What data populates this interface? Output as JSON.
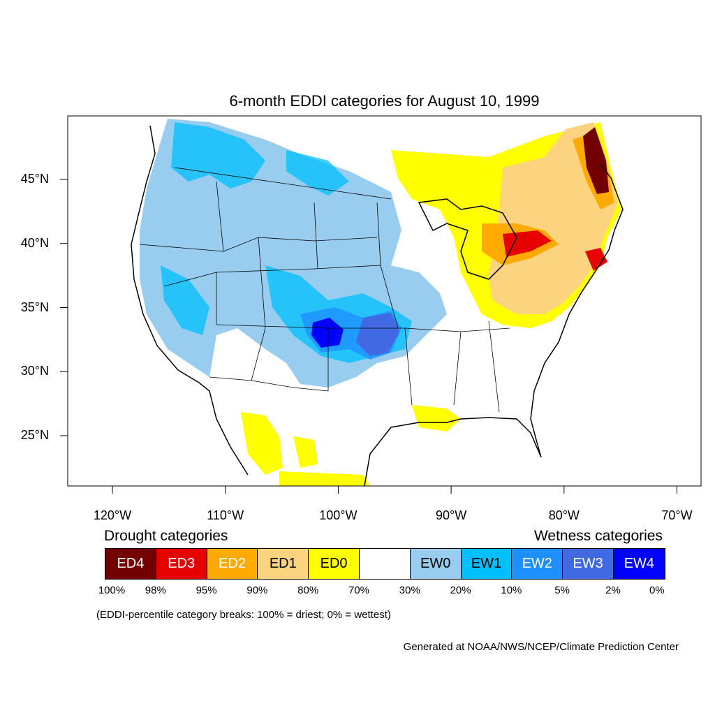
{
  "title": "6-month EDDI categories for August 10, 1999",
  "lat_labels": [
    "45°N",
    "40°N",
    "35°N",
    "30°N",
    "25°N"
  ],
  "lat_values": [
    45,
    40,
    35,
    30,
    25
  ],
  "lon_labels": [
    "120°W",
    "110°W",
    "100°W",
    "90°W",
    "80°W",
    "70°W"
  ],
  "lon_values": [
    -120,
    -110,
    -100,
    -90,
    -80,
    -70
  ],
  "legend": {
    "drought_heading": "Drought categories",
    "wetness_heading": "Wetness categories",
    "categories": [
      {
        "label": "ED4",
        "color": "#730000",
        "text_color": "#ffffff"
      },
      {
        "label": "ED3",
        "color": "#e60000",
        "text_color": "#ffffff"
      },
      {
        "label": "ED2",
        "color": "#ffaa00",
        "text_color": "#ffffff"
      },
      {
        "label": "ED1",
        "color": "#fcd37f",
        "text_color": "#000000"
      },
      {
        "label": "ED0",
        "color": "#ffff00",
        "text_color": "#000000"
      },
      {
        "label": "",
        "color": "#ffffff",
        "text_color": "#000000"
      },
      {
        "label": "EW0",
        "color": "#98cdf0",
        "text_color": "#000000"
      },
      {
        "label": "EW1",
        "color": "#00bfff",
        "text_color": "#000000"
      },
      {
        "label": "EW2",
        "color": "#1e90ff",
        "text_color": "#ffffff"
      },
      {
        "label": "EW3",
        "color": "#4169e1",
        "text_color": "#ffffff"
      },
      {
        "label": "EW4",
        "color": "#0000ff",
        "text_color": "#ffffff"
      }
    ],
    "breaks": [
      "100%",
      "98%",
      "95%",
      "90%",
      "80%",
      "70%",
      "30%",
      "20%",
      "10%",
      "5%",
      "2%",
      "0%"
    ]
  },
  "note": "(EDDI-percentile category breaks: 100% = driest; 0% = wettest)",
  "credit": "Generated at NOAA/NWS/NCEP/Climate Prediction Center",
  "regions": [
    {
      "name": "northeast-drought",
      "category": "ED1"
    },
    {
      "name": "great-lakes-drought",
      "category": "ED0"
    },
    {
      "name": "central-plains-wetness",
      "category": "EW1"
    },
    {
      "name": "western-wetness",
      "category": "EW1"
    }
  ]
}
